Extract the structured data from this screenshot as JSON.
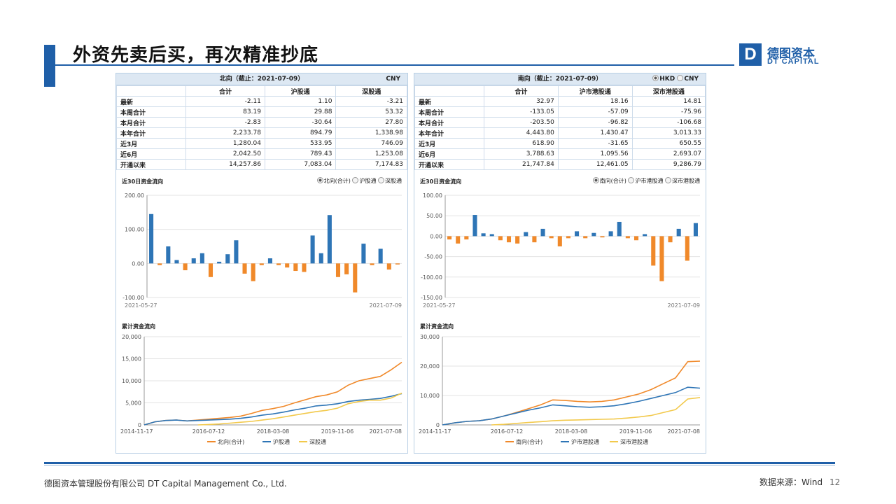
{
  "title": "外资先卖后买，再次精准抄底",
  "logo": {
    "letter": "D",
    "cn": "德图资本",
    "en": "DT CAPITAL"
  },
  "footer": {
    "company": "德图资本管理股份有限公司  DT Capital  Management  Co., Ltd.",
    "source": "数据来源：Wind",
    "page": "12"
  },
  "left": {
    "header": "北向（截止：2021-07-09）",
    "currency": "CNY",
    "columns": [
      "",
      "合计",
      "沪股通",
      "深股通"
    ],
    "rows": [
      {
        "label": "最新",
        "vals": [
          "-2.11",
          "1.10",
          "-3.21"
        ]
      },
      {
        "label": "本周合计",
        "vals": [
          "83.19",
          "29.88",
          "53.32"
        ]
      },
      {
        "label": "本月合计",
        "vals": [
          "-2.83",
          "-30.64",
          "27.80"
        ]
      },
      {
        "label": "本年合计",
        "vals": [
          "2,233.78",
          "894.79",
          "1,338.98"
        ]
      },
      {
        "label": "近3月",
        "vals": [
          "1,280.04",
          "533.95",
          "746.09"
        ]
      },
      {
        "label": "近6月",
        "vals": [
          "2,042.50",
          "789.43",
          "1,253.08"
        ]
      },
      {
        "label": "开通以来",
        "vals": [
          "14,257.86",
          "7,083.04",
          "7,174.83"
        ]
      }
    ],
    "flow_label": "近30日资金流向",
    "radios": [
      "北向(合计)",
      "沪股通",
      "深股通"
    ],
    "cum_label": "累计资金流向"
  },
  "right": {
    "header": "南向（截止：2021-07-09）",
    "currency_opts": [
      "HKD",
      "CNY"
    ],
    "columns": [
      "",
      "合计",
      "沪市港股通",
      "深市港股通"
    ],
    "rows": [
      {
        "label": "最新",
        "vals": [
          "32.97",
          "18.16",
          "14.81"
        ]
      },
      {
        "label": "本周合计",
        "vals": [
          "-133.05",
          "-57.09",
          "-75.96"
        ]
      },
      {
        "label": "本月合计",
        "vals": [
          "-203.50",
          "-96.82",
          "-106.68"
        ]
      },
      {
        "label": "本年合计",
        "vals": [
          "4,443.80",
          "1,430.47",
          "3,013.33"
        ]
      },
      {
        "label": "近3月",
        "vals": [
          "618.90",
          "-31.65",
          "650.55"
        ]
      },
      {
        "label": "近6月",
        "vals": [
          "3,788.63",
          "1,095.56",
          "2,693.07"
        ]
      },
      {
        "label": "开通以来",
        "vals": [
          "21,747.84",
          "12,461.05",
          "9,286.79"
        ]
      }
    ],
    "flow_label": "近30日资金流向",
    "radios": [
      "南向(合计)",
      "沪市港股通",
      "深市港股通"
    ],
    "cum_label": "累计资金流向"
  },
  "colors": {
    "accent": "#1f5fa8",
    "pos": "#2e75b6",
    "neg": "#f0892a",
    "series3": "#f2c94c"
  },
  "chart_data": [
    {
      "type": "bar",
      "ylim": [
        -100,
        200
      ],
      "yticks": [
        "200.00",
        "100.00",
        "0.00",
        "-100.00"
      ],
      "xticks": [
        "2021-05-27",
        "2021-07-09"
      ],
      "values": [
        145,
        -5,
        50,
        10,
        -20,
        15,
        30,
        -40,
        5,
        27,
        68,
        -30,
        -52,
        -5,
        15,
        -5,
        -12,
        -22,
        -25,
        82,
        30,
        142,
        -40,
        -32,
        -85,
        58,
        -5,
        43,
        -18,
        -3
      ]
    },
    {
      "type": "bar",
      "ylim": [
        -150,
        100
      ],
      "yticks": [
        "100.00",
        "50.00",
        "0.00",
        "-50.00",
        "-100.00",
        "-150.00"
      ],
      "xticks": [
        "2021-05-27",
        "2021-07-09"
      ],
      "values": [
        -8,
        -18,
        -8,
        52,
        7,
        5,
        -10,
        -15,
        -18,
        10,
        -15,
        18,
        -5,
        -25,
        -5,
        12,
        -5,
        8,
        -3,
        12,
        35,
        -5,
        -10,
        5,
        -72,
        -110,
        -15,
        18,
        -60,
        32
      ]
    },
    {
      "type": "line",
      "ylim": [
        0,
        20000
      ],
      "yticks": [
        "20,000",
        "15,000",
        "10,000",
        "5,000",
        "0"
      ],
      "xticks": [
        "2014-11-17",
        "2016-07-12",
        "2018-03-08",
        "2019-11-06",
        "2021-07-08"
      ],
      "series": [
        {
          "name": "北向(合计)",
          "values": [
            0,
            700,
            1000,
            1100,
            900,
            1100,
            1300,
            1500,
            1700,
            2000,
            2600,
            3300,
            3700,
            4200,
            5000,
            5700,
            6400,
            6800,
            7500,
            9000,
            10000,
            10500,
            11000,
            12500,
            14200
          ]
        },
        {
          "name": "沪股通",
          "values": [
            0,
            700,
            1000,
            1100,
            900,
            1000,
            1100,
            1200,
            1300,
            1500,
            1800,
            2200,
            2500,
            2900,
            3400,
            3800,
            4300,
            4500,
            4800,
            5300,
            5600,
            5800,
            6000,
            6500,
            7100
          ]
        },
        {
          "name": "深股通",
          "values": [
            null,
            null,
            null,
            null,
            null,
            0,
            100,
            200,
            400,
            600,
            800,
            1100,
            1400,
            1800,
            2200,
            2600,
            3000,
            3300,
            3800,
            4800,
            5300,
            5600,
            5600,
            6100,
            7200
          ]
        }
      ]
    },
    {
      "type": "line",
      "ylim": [
        0,
        30000
      ],
      "yticks": [
        "30,000",
        "20,000",
        "10,000",
        "0"
      ],
      "xticks": [
        "2014-11-17",
        "2016-07-12",
        "2018-03-08",
        "2019-11-06",
        "2021-07-08"
      ],
      "series": [
        {
          "name": "南向(合计)",
          "values": [
            0,
            700,
            1200,
            1400,
            2000,
            3000,
            4200,
            5500,
            6800,
            8500,
            8300,
            8000,
            7800,
            8000,
            8500,
            9500,
            10500,
            12000,
            14000,
            16000,
            21500,
            21700
          ]
        },
        {
          "name": "沪市港股通",
          "values": [
            0,
            700,
            1200,
            1400,
            2000,
            3000,
            4000,
            5000,
            5800,
            6800,
            6500,
            6200,
            6000,
            6200,
            6500,
            7200,
            8000,
            9000,
            10000,
            11000,
            12800,
            12500
          ]
        },
        {
          "name": "深市港股通",
          "values": [
            null,
            null,
            null,
            null,
            0,
            200,
            500,
            800,
            1100,
            1400,
            1600,
            1700,
            1800,
            1900,
            2000,
            2300,
            2700,
            3200,
            4200,
            5200,
            8800,
            9300
          ]
        }
      ]
    }
  ]
}
